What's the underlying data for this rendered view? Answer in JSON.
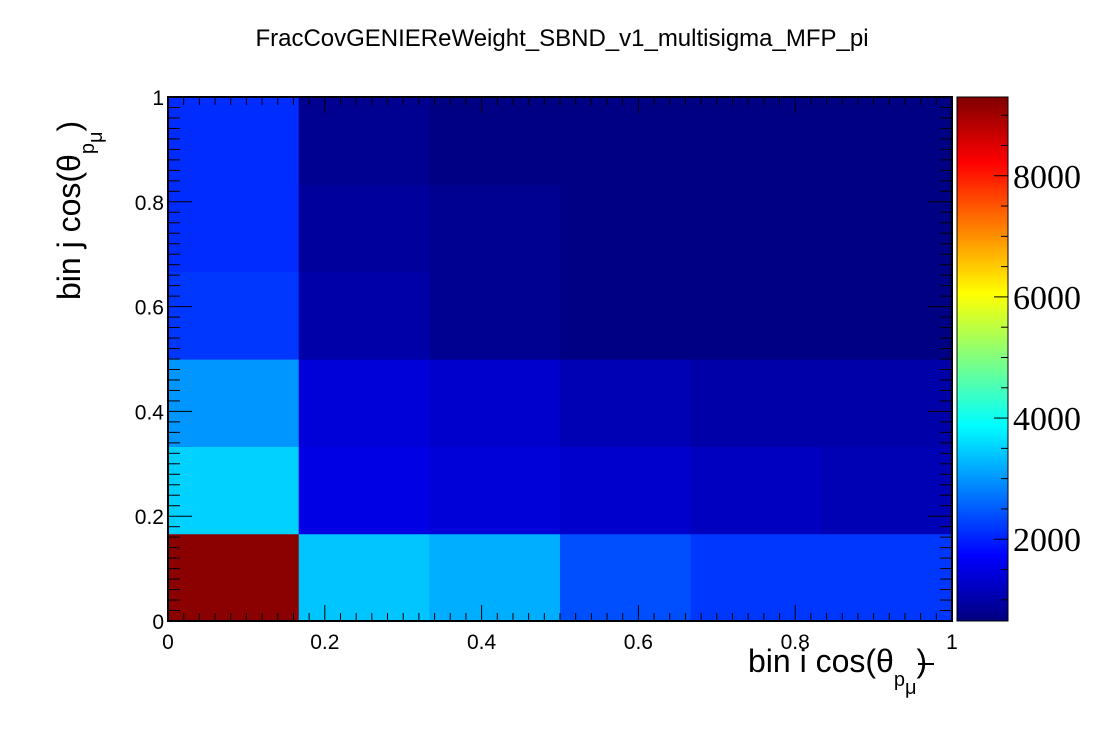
{
  "chart_data": {
    "type": "heatmap",
    "title": "FracCovGENIEReWeight_SBND_v1_multisigma_MFP_pi",
    "xlabel": {
      "main": "bin i cos(θ",
      "sub": "p",
      "subsub": "μ",
      "close": ")"
    },
    "ylabel": {
      "main": "bin j cos(θ",
      "sub": "p",
      "subsub": "μ",
      "close": ")"
    },
    "xlim": [
      0,
      1
    ],
    "ylim": [
      0,
      1
    ],
    "x_ticks": [
      "0",
      "0.2",
      "0.4",
      "0.6",
      "0.8",
      "1"
    ],
    "y_ticks": [
      "0",
      "0.2",
      "0.4",
      "0.6",
      "0.8",
      "1"
    ],
    "x_tick_values": [
      0,
      0.2,
      0.4,
      0.6,
      0.8,
      1
    ],
    "y_tick_values": [
      0,
      0.2,
      0.4,
      0.6,
      0.8,
      1
    ],
    "x_bin_edges": [
      0,
      0.1667,
      0.3333,
      0.5,
      0.6667,
      0.8333,
      1
    ],
    "y_bin_edges": [
      0,
      0.1667,
      0.3333,
      0.5,
      0.6667,
      0.8333,
      1
    ],
    "z_values": [
      [
        9200,
        3400,
        3200,
        2400,
        2200,
        2200
      ],
      [
        3500,
        1500,
        1400,
        1300,
        1200,
        1100
      ],
      [
        3000,
        1400,
        1300,
        1100,
        1000,
        1000
      ],
      [
        2200,
        1000,
        800,
        700,
        700,
        700
      ],
      [
        2100,
        900,
        800,
        700,
        700,
        700
      ],
      [
        2100,
        800,
        700,
        700,
        700,
        700
      ]
    ],
    "zlim": [
      650,
      9300
    ],
    "z_ticks": [
      "2000",
      "4000",
      "6000",
      "8000"
    ],
    "z_tick_values": [
      2000,
      4000,
      6000,
      8000
    ],
    "colormap": [
      "#00007f",
      "#0000ff",
      "#0080ff",
      "#00ffff",
      "#80ff80",
      "#ffff00",
      "#ff8000",
      "#ff0000",
      "#7f0000"
    ],
    "grid": false,
    "legend": "colorbar-right"
  }
}
